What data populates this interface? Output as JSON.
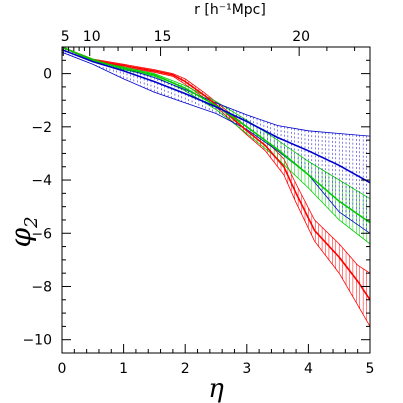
{
  "chart_data": {
    "type": "line",
    "xlabel": "η",
    "ylabel": "φ",
    "ylabel_sub": "2",
    "top_axis_label": "r [h⁻¹Mpc]",
    "xlim": [
      0,
      5
    ],
    "ylim": [
      -10.5,
      1
    ],
    "x_ticks": [
      0,
      1,
      2,
      3,
      4,
      5
    ],
    "y_ticks": [
      0,
      -2,
      -4,
      -6,
      -8,
      -10
    ],
    "top_ticks": [
      {
        "label": "5",
        "eta": 0.02
      },
      {
        "label": "10",
        "eta": 0.45
      },
      {
        "label": "15",
        "eta": 1.6
      },
      {
        "label": "20",
        "eta": 3.85
      }
    ],
    "grid": false,
    "series": [
      {
        "color": "#ff0000",
        "x": [
          0,
          0.5,
          1.0,
          1.5,
          1.8,
          2.0,
          2.3,
          2.6,
          3.0,
          3.3,
          3.6,
          3.8,
          4.1,
          4.5,
          4.8,
          5.0
        ],
        "y": [
          1.0,
          0.5,
          0.3,
          0.1,
          -0.05,
          -0.3,
          -0.8,
          -1.35,
          -2.15,
          -2.7,
          -3.5,
          -4.5,
          -5.9,
          -6.9,
          -7.8,
          -8.5
        ],
        "upper": [
          1.0,
          0.55,
          0.35,
          0.15,
          0.0,
          -0.2,
          -0.7,
          -1.25,
          -2.0,
          -2.5,
          -3.2,
          -4.15,
          -5.5,
          -6.4,
          -7.2,
          -7.5
        ],
        "lower": [
          0.9,
          0.45,
          0.25,
          0.05,
          -0.1,
          -0.4,
          -0.9,
          -1.45,
          -2.3,
          -2.9,
          -3.8,
          -4.85,
          -6.3,
          -7.5,
          -8.7,
          -9.5
        ]
      },
      {
        "color": "#00cc00",
        "x": [
          0,
          0.5,
          1.0,
          1.5,
          2.0,
          2.5,
          3.0,
          3.5,
          4.0,
          4.5,
          5.0
        ],
        "y": [
          1.0,
          0.5,
          0.2,
          -0.05,
          -0.55,
          -1.2,
          -2.0,
          -2.85,
          -3.8,
          -4.8,
          -5.6
        ],
        "upper": [
          1.0,
          0.55,
          0.25,
          0.0,
          -0.45,
          -1.05,
          -1.75,
          -2.5,
          -3.3,
          -4.0,
          -4.7
        ],
        "lower": [
          0.9,
          0.45,
          0.15,
          -0.1,
          -0.65,
          -1.35,
          -2.25,
          -3.2,
          -4.3,
          -5.5,
          -6.4
        ]
      },
      {
        "color": "#0000cc",
        "x": [
          0,
          0.5,
          1.0,
          1.5,
          2.0,
          2.5,
          3.0,
          3.5,
          4.0,
          4.5,
          5.0
        ],
        "y": [
          0.9,
          0.45,
          0.1,
          -0.3,
          -0.75,
          -1.25,
          -1.8,
          -2.4,
          -2.9,
          -3.45,
          -4.1
        ],
        "upper": [
          1.0,
          0.5,
          0.2,
          -0.15,
          -0.6,
          -1.1,
          -1.55,
          -1.95,
          -2.15,
          -2.25,
          -2.35
        ],
        "lower": [
          0.8,
          0.35,
          -0.2,
          -0.7,
          -1.1,
          -1.5,
          -2.1,
          -2.9,
          -3.8,
          -5.2,
          -6.0
        ]
      }
    ]
  }
}
